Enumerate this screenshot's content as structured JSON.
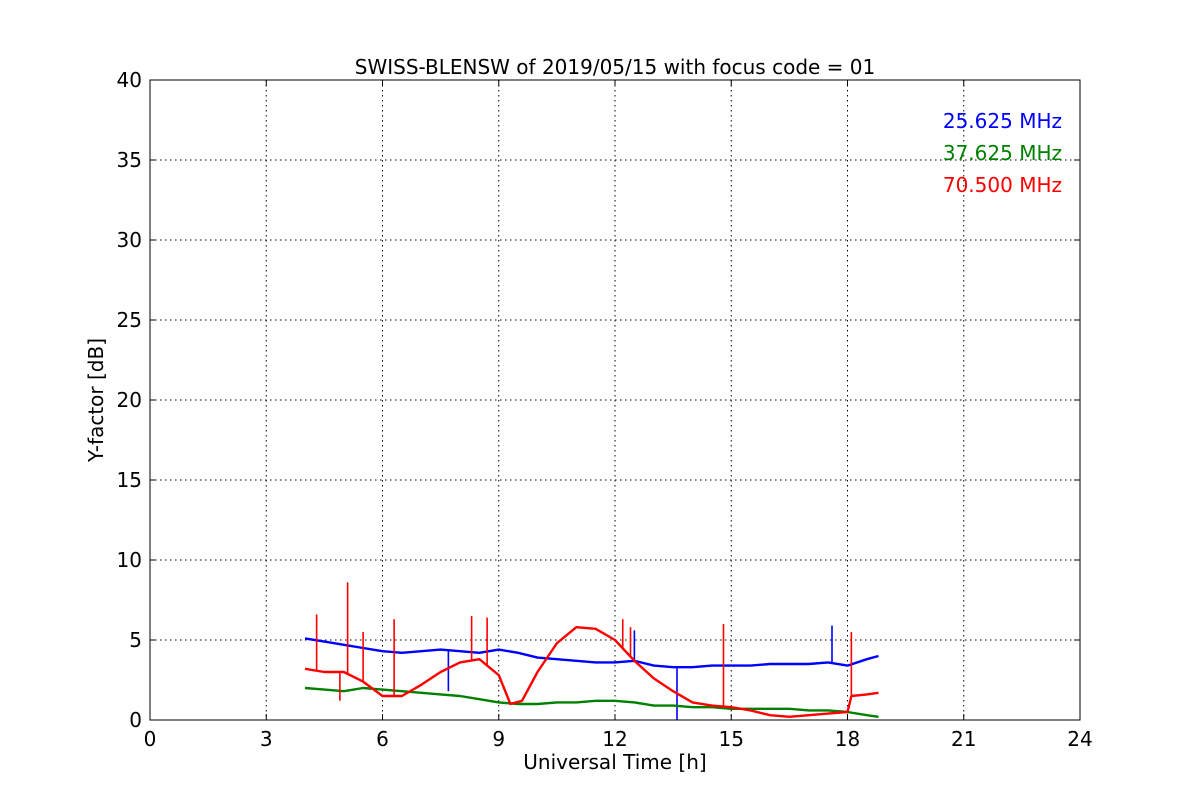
{
  "chart_data": {
    "type": "line",
    "title": "SWISS-BLENSW of 2019/05/15 with focus code = 01",
    "xlabel": "Universal Time [h]",
    "ylabel": "Y-factor [dB]",
    "xlim": [
      0,
      24
    ],
    "ylim": [
      0,
      40
    ],
    "xticks": [
      0,
      3,
      6,
      9,
      12,
      15,
      18,
      21,
      24
    ],
    "yticks": [
      0,
      5,
      10,
      15,
      20,
      25,
      30,
      35,
      40
    ],
    "grid": true,
    "legend_position": "top-right",
    "series": [
      {
        "name": "25.625 MHz",
        "color": "#0000ff",
        "x": [
          4.0,
          4.5,
          5.0,
          5.5,
          6.0,
          6.5,
          7.0,
          7.5,
          8.0,
          8.5,
          9.0,
          9.5,
          10.0,
          10.5,
          11.0,
          11.5,
          12.0,
          12.5,
          13.0,
          13.5,
          14.0,
          14.5,
          15.0,
          15.5,
          16.0,
          16.5,
          17.0,
          17.5,
          18.0,
          18.5,
          18.8
        ],
        "y": [
          5.1,
          4.9,
          4.7,
          4.5,
          4.3,
          4.2,
          4.3,
          4.4,
          4.3,
          4.2,
          4.4,
          4.2,
          3.9,
          3.8,
          3.7,
          3.6,
          3.6,
          3.7,
          3.4,
          3.3,
          3.3,
          3.4,
          3.4,
          3.4,
          3.5,
          3.5,
          3.5,
          3.6,
          3.4,
          3.8,
          4.0
        ],
        "spikes": [
          {
            "x": 12.5,
            "y": 5.6
          },
          {
            "x": 17.6,
            "y": 5.9
          },
          {
            "x": 13.6,
            "y": 0.0
          },
          {
            "x": 7.7,
            "y": 1.8
          }
        ]
      },
      {
        "name": "37.625 MHz",
        "color": "#008000",
        "x": [
          4.0,
          4.5,
          5.0,
          5.5,
          6.0,
          6.5,
          7.0,
          7.5,
          8.0,
          8.5,
          9.0,
          9.5,
          10.0,
          10.5,
          11.0,
          11.5,
          12.0,
          12.5,
          13.0,
          13.5,
          14.0,
          14.5,
          15.0,
          15.5,
          16.0,
          16.5,
          17.0,
          17.5,
          18.0,
          18.5,
          18.8
        ],
        "y": [
          2.0,
          1.9,
          1.8,
          2.0,
          1.9,
          1.8,
          1.7,
          1.6,
          1.5,
          1.3,
          1.1,
          1.0,
          1.0,
          1.1,
          1.1,
          1.2,
          1.2,
          1.1,
          0.9,
          0.9,
          0.8,
          0.8,
          0.7,
          0.7,
          0.7,
          0.7,
          0.6,
          0.6,
          0.5,
          0.3,
          0.2
        ],
        "spikes": []
      },
      {
        "name": "70.500 MHz",
        "color": "#ff0000",
        "x": [
          4.0,
          4.5,
          5.0,
          5.5,
          6.0,
          6.5,
          7.0,
          7.5,
          8.0,
          8.5,
          9.0,
          9.3,
          9.6,
          10.0,
          10.5,
          11.0,
          11.5,
          12.0,
          12.5,
          13.0,
          13.5,
          14.0,
          14.5,
          15.0,
          15.5,
          16.0,
          16.5,
          17.0,
          17.5,
          18.0,
          18.1,
          18.5,
          18.8
        ],
        "y": [
          3.2,
          3.0,
          3.0,
          2.4,
          1.5,
          1.5,
          2.2,
          3.0,
          3.6,
          3.8,
          2.8,
          1.0,
          1.2,
          3.0,
          4.8,
          5.8,
          5.7,
          5.0,
          3.7,
          2.6,
          1.8,
          1.1,
          0.9,
          0.8,
          0.6,
          0.3,
          0.2,
          0.3,
          0.4,
          0.5,
          1.5,
          1.6,
          1.7
        ],
        "spikes": [
          {
            "x": 4.3,
            "y": 6.6
          },
          {
            "x": 5.1,
            "y": 8.6
          },
          {
            "x": 5.5,
            "y": 5.5
          },
          {
            "x": 6.3,
            "y": 6.3
          },
          {
            "x": 8.3,
            "y": 6.5
          },
          {
            "x": 8.7,
            "y": 6.4
          },
          {
            "x": 12.2,
            "y": 6.3
          },
          {
            "x": 12.4,
            "y": 5.8
          },
          {
            "x": 14.8,
            "y": 6.0
          },
          {
            "x": 18.1,
            "y": 5.5
          },
          {
            "x": 4.9,
            "y": 1.2
          }
        ]
      }
    ]
  }
}
